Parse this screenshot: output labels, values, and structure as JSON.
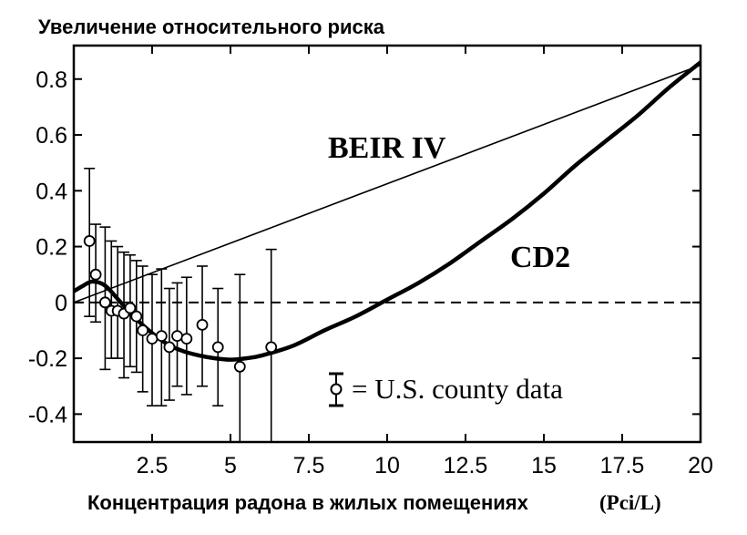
{
  "chart_data": {
    "type": "line",
    "title": "Увеличение относительного риска",
    "xlabel": "Концентрация радона в жилых помещениях",
    "xlabel_unit": "(Pci/L)",
    "xlim": [
      0,
      20
    ],
    "ylim": [
      -0.5,
      0.92
    ],
    "x_ticks": [
      2.5,
      5,
      7.5,
      10,
      12.5,
      15,
      17.5,
      20
    ],
    "x_tick_labels": [
      "2.5",
      "5",
      "7.5",
      "10",
      "12.5",
      "15",
      "17.5",
      "20"
    ],
    "y_ticks": [
      0.8,
      0.6,
      0.4,
      0.2,
      0,
      -0.2,
      -0.4
    ],
    "y_tick_labels": [
      "0.8",
      "0.6",
      "0.4",
      "0.2",
      "0",
      "-0.2",
      "-0.4"
    ],
    "grid": false,
    "series": [
      {
        "name": "BEIR IV",
        "style": "thin-line",
        "color": "#000000",
        "x": [
          0,
          20
        ],
        "y": [
          0,
          0.85
        ]
      },
      {
        "name": "CD2",
        "style": "thick-line",
        "color": "#000000",
        "x": [
          0,
          0.3,
          0.6,
          1.0,
          1.5,
          2.0,
          2.5,
          3.0,
          3.5,
          4.0,
          4.5,
          5.0,
          5.5,
          6.0,
          7.0,
          8.0,
          9.0,
          10.0,
          11.0,
          12.0,
          13.0,
          14.0,
          15.0,
          16.0,
          17.0,
          18.0,
          19.0,
          20.0
        ],
        "y": [
          0.04,
          0.06,
          0.075,
          0.06,
          0.0,
          -0.06,
          -0.11,
          -0.15,
          -0.175,
          -0.19,
          -0.2,
          -0.205,
          -0.2,
          -0.19,
          -0.155,
          -0.1,
          -0.05,
          0.01,
          0.07,
          0.14,
          0.22,
          0.3,
          0.39,
          0.49,
          0.58,
          0.67,
          0.77,
          0.86
        ]
      },
      {
        "name": "zero",
        "style": "dashed-line",
        "color": "#000000",
        "x": [
          0,
          20
        ],
        "y": [
          0,
          0
        ]
      },
      {
        "name": "U.S. county data",
        "style": "points-with-error-bars",
        "color": "#000000",
        "points": [
          {
            "x": 0.5,
            "y": 0.22,
            "lo": -0.05,
            "hi": 0.48
          },
          {
            "x": 0.7,
            "y": 0.1,
            "lo": -0.07,
            "hi": 0.28
          },
          {
            "x": 1.0,
            "y": 0.0,
            "lo": -0.24,
            "hi": 0.27
          },
          {
            "x": 1.2,
            "y": -0.03,
            "lo": -0.2,
            "hi": 0.22
          },
          {
            "x": 1.4,
            "y": -0.03,
            "lo": -0.2,
            "hi": 0.2
          },
          {
            "x": 1.6,
            "y": -0.04,
            "lo": -0.27,
            "hi": 0.18
          },
          {
            "x": 1.8,
            "y": -0.02,
            "lo": -0.23,
            "hi": 0.17
          },
          {
            "x": 2.0,
            "y": -0.05,
            "lo": -0.25,
            "hi": 0.15
          },
          {
            "x": 2.2,
            "y": -0.1,
            "lo": -0.32,
            "hi": 0.13
          },
          {
            "x": 2.5,
            "y": -0.13,
            "lo": -0.37,
            "hi": 0.1
          },
          {
            "x": 2.8,
            "y": -0.12,
            "lo": -0.37,
            "hi": 0.12
          },
          {
            "x": 3.05,
            "y": -0.16,
            "lo": -0.35,
            "hi": 0.05
          },
          {
            "x": 3.3,
            "y": -0.12,
            "lo": -0.3,
            "hi": 0.07
          },
          {
            "x": 3.6,
            "y": -0.13,
            "lo": -0.33,
            "hi": 0.09
          },
          {
            "x": 4.1,
            "y": -0.08,
            "lo": -0.3,
            "hi": 0.13
          },
          {
            "x": 4.6,
            "y": -0.16,
            "lo": -0.37,
            "hi": 0.05
          },
          {
            "x": 5.3,
            "y": -0.23,
            "lo": -0.6,
            "hi": 0.1
          },
          {
            "x": 6.3,
            "y": -0.16,
            "lo": -0.6,
            "hi": 0.19
          }
        ]
      }
    ],
    "annotations": [
      {
        "text": "BEIR IV",
        "target": "BEIR IV"
      },
      {
        "text": "CD2",
        "target": "CD2"
      }
    ],
    "legend": {
      "text": "= U.S. county data",
      "placement": "lower-right"
    }
  }
}
